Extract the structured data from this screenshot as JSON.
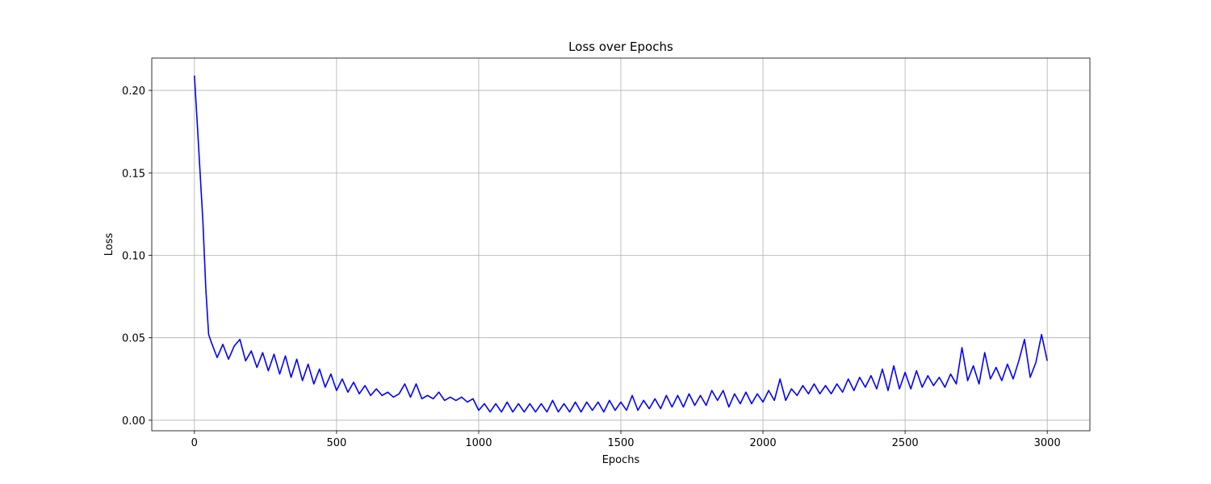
{
  "chart_data": {
    "type": "line",
    "title": "Loss over Epochs",
    "x_label": "Epochs",
    "y_label": "Loss",
    "color": "#0000ff",
    "grid": true,
    "xlim": [
      -150,
      3150
    ],
    "ylim": [
      -0.0064,
      0.2196
    ],
    "xticks": [
      0,
      500,
      1000,
      1500,
      2000,
      2500,
      3000
    ],
    "yticks": [
      {
        "value": 0,
        "label": "0.00"
      },
      0.05,
      {
        "value": 0.1,
        "label": "0.10"
      },
      0.15,
      {
        "value": 0.2,
        "label": "0.20"
      }
    ],
    "x": [
      0,
      10,
      20,
      30,
      40,
      50,
      60,
      80,
      100,
      120,
      140,
      160,
      180,
      200,
      220,
      240,
      260,
      280,
      300,
      320,
      340,
      360,
      380,
      400,
      420,
      440,
      460,
      480,
      500,
      520,
      540,
      560,
      580,
      600,
      620,
      640,
      660,
      680,
      700,
      720,
      740,
      760,
      780,
      800,
      820,
      840,
      860,
      880,
      900,
      920,
      940,
      960,
      980,
      1000,
      1020,
      1040,
      1060,
      1080,
      1100,
      1120,
      1140,
      1160,
      1180,
      1200,
      1220,
      1240,
      1260,
      1280,
      1300,
      1320,
      1340,
      1360,
      1380,
      1400,
      1420,
      1440,
      1460,
      1480,
      1500,
      1520,
      1540,
      1560,
      1580,
      1600,
      1620,
      1640,
      1660,
      1680,
      1700,
      1720,
      1740,
      1760,
      1780,
      1800,
      1820,
      1840,
      1860,
      1880,
      1900,
      1920,
      1940,
      1960,
      1980,
      2000,
      2020,
      2040,
      2060,
      2080,
      2100,
      2120,
      2140,
      2160,
      2180,
      2200,
      2220,
      2240,
      2260,
      2280,
      2300,
      2320,
      2340,
      2360,
      2380,
      2400,
      2420,
      2440,
      2460,
      2480,
      2500,
      2520,
      2540,
      2560,
      2580,
      2600,
      2620,
      2640,
      2660,
      2680,
      2700,
      2720,
      2740,
      2760,
      2780,
      2800,
      2820,
      2840,
      2860,
      2880,
      2900,
      2920,
      2940,
      2960,
      2980,
      3000
    ],
    "values": [
      0.209,
      0.18,
      0.15,
      0.12,
      0.08,
      0.052,
      0.047,
      0.038,
      0.046,
      0.037,
      0.045,
      0.049,
      0.036,
      0.042,
      0.032,
      0.041,
      0.03,
      0.04,
      0.028,
      0.039,
      0.026,
      0.037,
      0.024,
      0.034,
      0.022,
      0.031,
      0.02,
      0.028,
      0.018,
      0.025,
      0.017,
      0.023,
      0.016,
      0.021,
      0.015,
      0.019,
      0.015,
      0.017,
      0.014,
      0.016,
      0.022,
      0.014,
      0.022,
      0.013,
      0.015,
      0.013,
      0.017,
      0.012,
      0.014,
      0.012,
      0.014,
      0.011,
      0.013,
      0.006,
      0.01,
      0.005,
      0.01,
      0.005,
      0.011,
      0.005,
      0.01,
      0.005,
      0.01,
      0.005,
      0.01,
      0.005,
      0.012,
      0.005,
      0.01,
      0.005,
      0.011,
      0.005,
      0.011,
      0.006,
      0.011,
      0.005,
      0.012,
      0.006,
      0.011,
      0.006,
      0.015,
      0.006,
      0.012,
      0.007,
      0.013,
      0.007,
      0.015,
      0.008,
      0.015,
      0.008,
      0.016,
      0.009,
      0.015,
      0.009,
      0.018,
      0.012,
      0.018,
      0.008,
      0.016,
      0.01,
      0.017,
      0.01,
      0.016,
      0.011,
      0.018,
      0.012,
      0.025,
      0.012,
      0.019,
      0.015,
      0.021,
      0.016,
      0.022,
      0.016,
      0.021,
      0.016,
      0.022,
      0.017,
      0.025,
      0.018,
      0.026,
      0.02,
      0.027,
      0.019,
      0.031,
      0.018,
      0.033,
      0.019,
      0.029,
      0.019,
      0.03,
      0.02,
      0.027,
      0.021,
      0.026,
      0.02,
      0.028,
      0.022,
      0.044,
      0.024,
      0.033,
      0.022,
      0.041,
      0.025,
      0.032,
      0.024,
      0.034,
      0.025,
      0.036,
      0.049,
      0.026,
      0.035,
      0.052,
      0.036
    ]
  }
}
